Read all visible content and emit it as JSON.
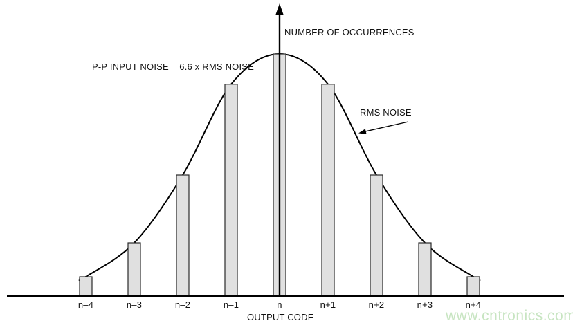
{
  "figure": {
    "y_axis_label": "NUMBER OF OCCURRENCES",
    "x_axis_label": "OUTPUT CODE",
    "annotation_pp_noise": "P-P INPUT NOISE = 6.6 x RMS NOISE",
    "annotation_rms": "RMS NOISE",
    "watermark": "www.cntronics.com"
  },
  "colors": {
    "background": "#ffffff",
    "bar_fill": "#e0e0e0",
    "bar_border": "#2a2a2a",
    "line": "#000000",
    "text": "#111111",
    "watermark": "#c8e5c2"
  },
  "chart_data": {
    "type": "bar",
    "subtype": "grounded-input-noise-histogram-with-gaussian-curve",
    "title": "",
    "xlabel": "OUTPUT CODE",
    "ylabel": "NUMBER OF OCCURRENCES",
    "categories": [
      "n–4",
      "n–3",
      "n–2",
      "n–1",
      "n",
      "n+1",
      "n+2",
      "n+3",
      "n+4"
    ],
    "values": [
      0.08,
      0.22,
      0.5,
      0.875,
      1.0,
      0.875,
      0.5,
      0.22,
      0.08
    ],
    "values_unit": "relative number of occurrences (peak = 1, no numeric y ticks shown)",
    "ylim": [
      0,
      1.05
    ],
    "gridlines": false,
    "legend": "none",
    "curve": {
      "shape": "gaussian",
      "center_category": "n",
      "sigma_in_codes": 1.8,
      "annotations": [
        "P-P INPUT NOISE = 6.6 x RMS NOISE",
        "RMS NOISE"
      ]
    }
  }
}
